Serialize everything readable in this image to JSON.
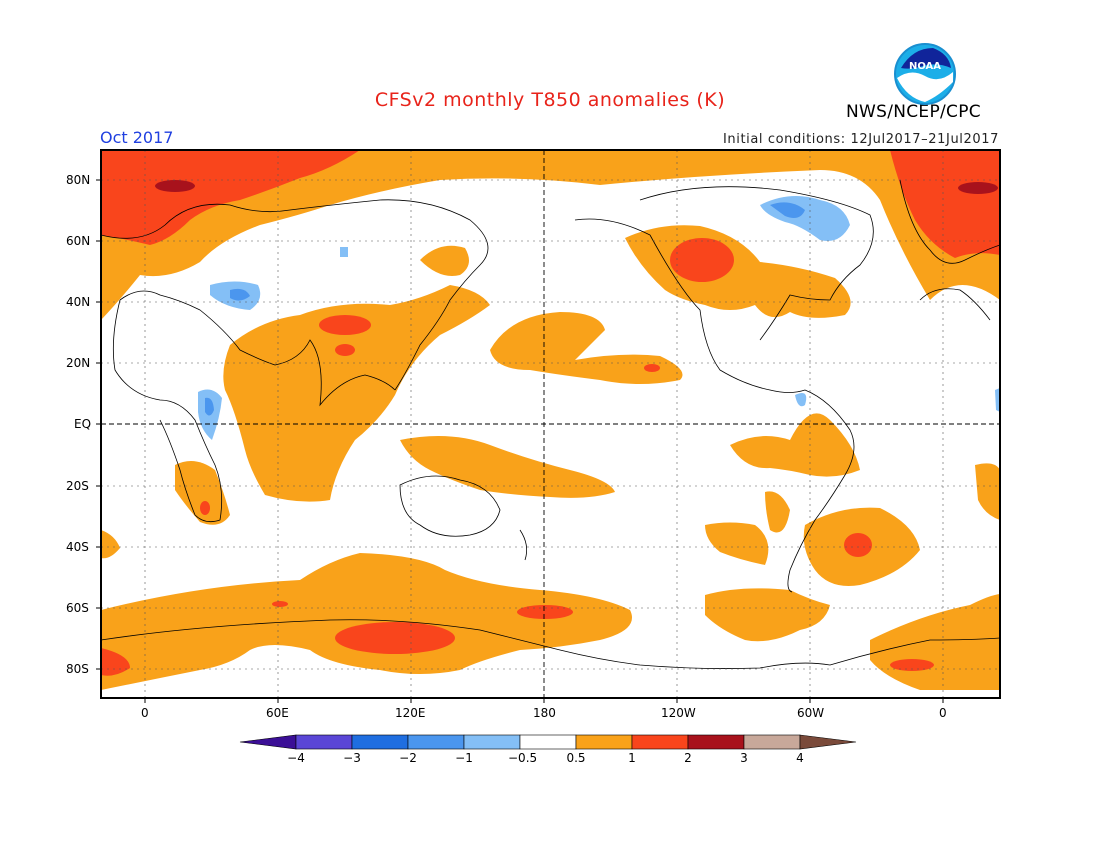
{
  "title": "CFSv2 monthly T850 anomalies (K)",
  "organization": "NWS/NCEP/CPC",
  "logo_text": "NOAA",
  "valid_month": "Oct 2017",
  "initial_conditions": "Initial conditions: 12Jul2017–21Jul2017",
  "lat_labels": [
    "80N",
    "60N",
    "40N",
    "20N",
    "EQ",
    "20S",
    "40S",
    "60S",
    "80S"
  ],
  "lon_labels": [
    "0",
    "60E",
    "120E",
    "180",
    "120W",
    "60W",
    "0"
  ],
  "colorbar": {
    "levels": [
      "−4",
      "−3",
      "−2",
      "−1",
      "−0.5",
      "0.5",
      "1",
      "2",
      "3",
      "4"
    ],
    "colors": [
      "#3b0f96",
      "#5a46d6",
      "#1f6ee0",
      "#4b96ee",
      "#84bff6",
      "#ffffff",
      "#f9a21a",
      "#f9451c",
      "#a8121c",
      "#c8a89a",
      "#7a4a3a"
    ]
  },
  "colors": {
    "ocean_land_bg": "#ffffff",
    "anomaly_0p5_1": "#f9a21a",
    "anomaly_1_2": "#f9451c",
    "anomaly_2_3": "#a8121c",
    "anomaly_neg_0p5_1": "#84bff6",
    "anomaly_neg_1_2": "#4b96ee",
    "title_color": "#e8231a",
    "month_color": "#2040e0"
  }
}
